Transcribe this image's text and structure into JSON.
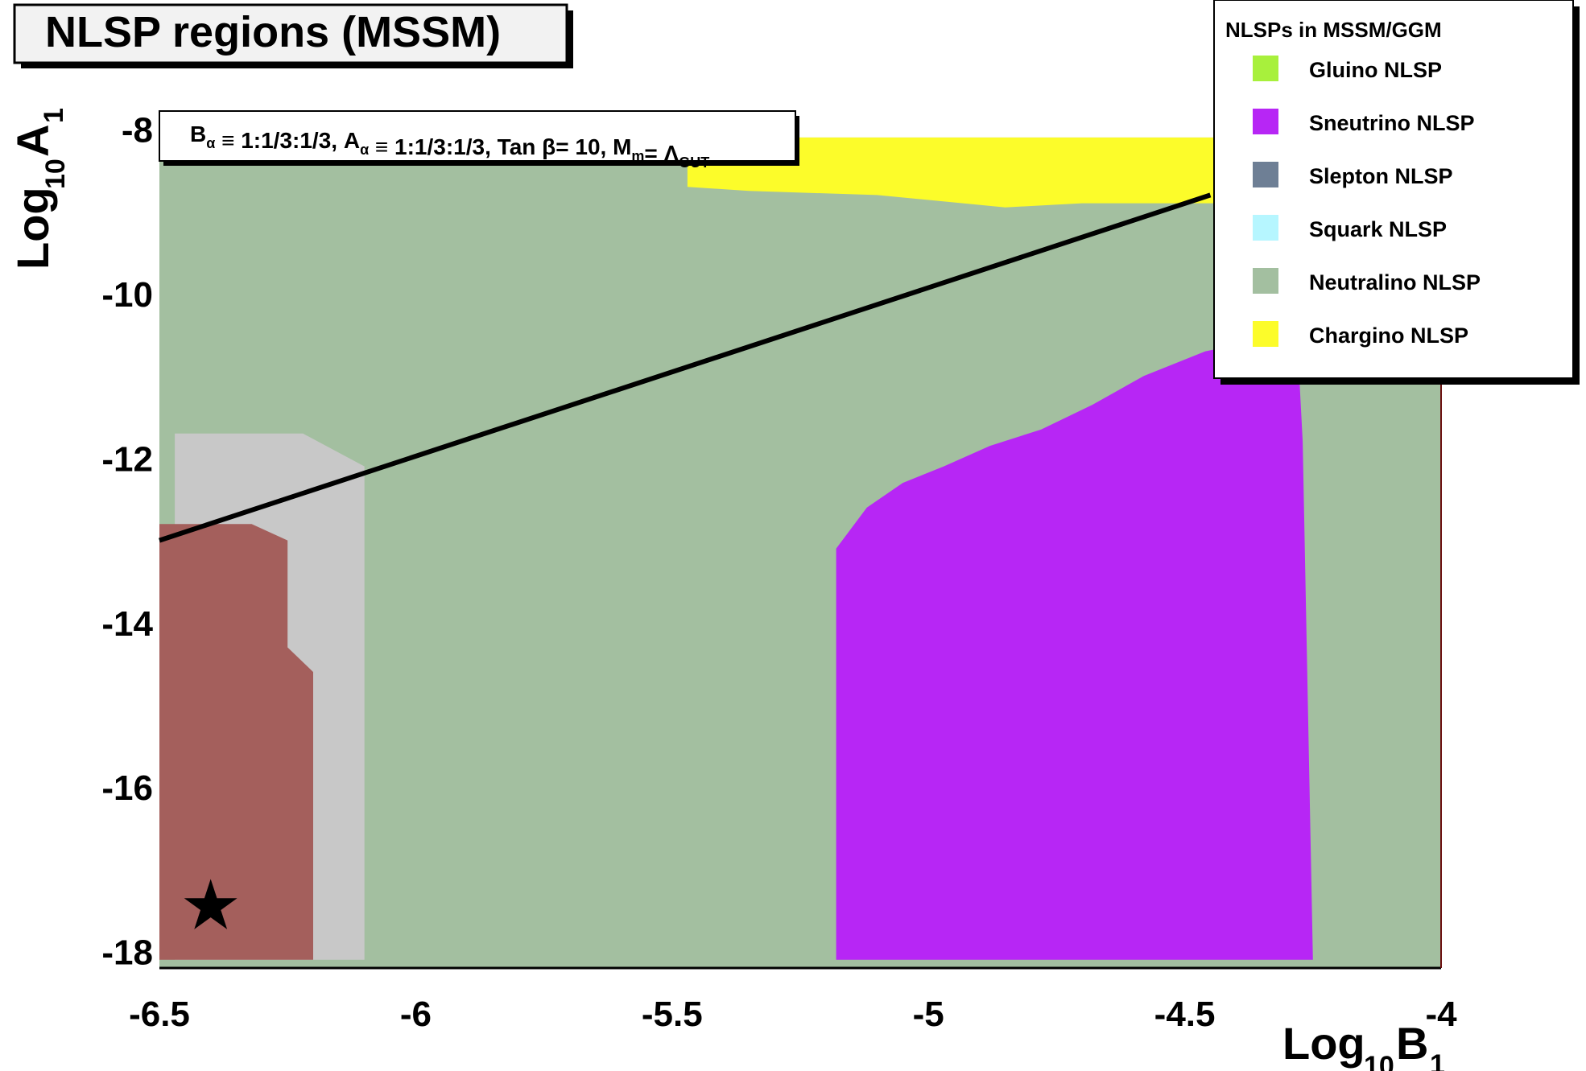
{
  "chart_data": {
    "type": "heatmap",
    "title": "NLSP regions (MSSM)",
    "xlabel": {
      "base": "Log",
      "sub": "10",
      "var": "B",
      "idx": "1"
    },
    "ylabel": {
      "base": "Log",
      "sub": "10",
      "var": "A",
      "idx": "1"
    },
    "xlim": [
      -6.5,
      -4
    ],
    "ylim": [
      -18.2,
      -7.7
    ],
    "xticks": [
      {
        "value": -6.5,
        "label": "-6.5"
      },
      {
        "value": -6.0,
        "label": "-6"
      },
      {
        "value": -5.5,
        "label": "-5.5"
      },
      {
        "value": -5.0,
        "label": "-5"
      },
      {
        "value": -4.5,
        "label": "-4.5"
      },
      {
        "value": -4.0,
        "label": "-4"
      }
    ],
    "yticks": [
      {
        "value": -8,
        "label": "-8"
      },
      {
        "value": -10,
        "label": "-10"
      },
      {
        "value": -12,
        "label": "-12"
      },
      {
        "value": -14,
        "label": "-14"
      },
      {
        "value": -16,
        "label": "-16"
      },
      {
        "value": -18,
        "label": "-18"
      }
    ],
    "parameters": {
      "parts": [
        {
          "t": "B",
          "s": "α"
        },
        {
          "t": " ≡ 1:1/3:1/3, A",
          "s": "α"
        },
        {
          "t": " ≡ 1:1/3:1/3, Tan β= 10, M",
          "s": "m"
        },
        {
          "t": "= Λ",
          "s": "GUT"
        }
      ]
    },
    "legend": {
      "title": "NLSPs in MSSM/GGM",
      "position": "top-right",
      "entries": [
        {
          "label": "Gluino NLSP",
          "color": "#a8f03c"
        },
        {
          "label": "Sneutrino NLSP",
          "color": "#b726f5"
        },
        {
          "label": "Slepton NLSP",
          "color": "#6e7f95"
        },
        {
          "label": "Squark NLSP",
          "color": "#b6f6ff"
        },
        {
          "label": "Neutralino NLSP",
          "color": "#a3bfa0"
        },
        {
          "label": "Chargino NLSP",
          "color": "#fcfc2a"
        }
      ]
    },
    "regions": [
      {
        "name": "neutralino-region",
        "color": "#a3bfa0",
        "polygon": [
          [
            -6.5,
            -8.1
          ],
          [
            -4.0,
            -8.1
          ],
          [
            -4.0,
            -18.2
          ],
          [
            -6.5,
            -18.2
          ]
        ]
      },
      {
        "name": "chargino-region",
        "color": "#fcfc2a",
        "polygon": [
          [
            -5.47,
            -8.1
          ],
          [
            -4.4,
            -8.1
          ],
          [
            -4.4,
            -8.9
          ],
          [
            -4.7,
            -8.9
          ],
          [
            -4.85,
            -8.95
          ],
          [
            -5.1,
            -8.8
          ],
          [
            -5.35,
            -8.75
          ],
          [
            -5.47,
            -8.7
          ]
        ]
      },
      {
        "name": "sneutrino-region",
        "color": "#b726f5",
        "polygon": [
          [
            -5.18,
            -13.1
          ],
          [
            -5.12,
            -12.6
          ],
          [
            -5.05,
            -12.3
          ],
          [
            -4.97,
            -12.1
          ],
          [
            -4.88,
            -11.85
          ],
          [
            -4.78,
            -11.65
          ],
          [
            -4.68,
            -11.35
          ],
          [
            -4.58,
            -11.0
          ],
          [
            -4.46,
            -10.7
          ],
          [
            -4.38,
            -10.6
          ],
          [
            -4.28,
            -10.6
          ],
          [
            -4.27,
            -11.8
          ],
          [
            -4.25,
            -18.1
          ],
          [
            -5.18,
            -18.1
          ]
        ]
      },
      {
        "name": "grey-region",
        "color": "#c8c8c8",
        "polygon": [
          [
            -6.47,
            -11.7
          ],
          [
            -6.22,
            -11.7
          ],
          [
            -6.1,
            -12.1
          ],
          [
            -6.1,
            -18.1
          ],
          [
            -6.47,
            -18.1
          ]
        ]
      },
      {
        "name": "brown-region",
        "color": "#a45f5c",
        "polygon": [
          [
            -6.5,
            -12.8
          ],
          [
            -6.32,
            -12.8
          ],
          [
            -6.25,
            -13.0
          ],
          [
            -6.25,
            -14.3
          ],
          [
            -6.2,
            -14.6
          ],
          [
            -6.2,
            -18.1
          ],
          [
            -6.5,
            -18.1
          ]
        ]
      }
    ],
    "line": {
      "name": "boundary-line",
      "color": "#000000",
      "points": [
        [
          -6.5,
          -13.0
        ],
        [
          -4.45,
          -8.8
        ]
      ]
    },
    "marker": {
      "name": "star-marker",
      "symbol": "★",
      "point": [
        -6.4,
        -17.45
      ]
    }
  }
}
